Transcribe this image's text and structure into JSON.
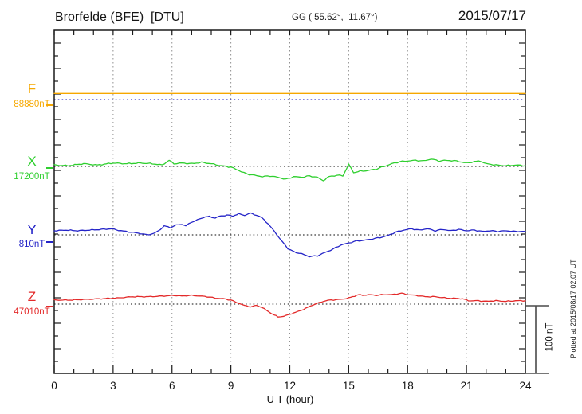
{
  "header": {
    "station": "Brorfelde (BFE)  [DTU]",
    "coords": "GG ( 55.62°,  11.67°)",
    "date": "2015/07/17"
  },
  "axis": {
    "xlabel": "U T (hour)",
    "hour_tick_labels": [
      "0",
      "3",
      "6",
      "9",
      "12",
      "15",
      "18",
      "21",
      "24"
    ],
    "scalebar_label": "100 nT"
  },
  "footer": {
    "plotted_at": "Plotted at 2015/08/17 02:07 UT"
  },
  "colors": {
    "frame": "#1a1a1a",
    "grid": "#8f8f8f",
    "baseline": "#3c3c3c",
    "f_baseline": "#3a3ac8",
    "scalebar": "#4a4a4a",
    "F": "#f6a800",
    "X": "#2fcf2f",
    "Y": "#2424c8",
    "Z": "#e32a2a"
  },
  "chart_data": {
    "type": "line",
    "title": "Brorfelde (BFE)  [DTU] magnetogram",
    "xlabel": "U T (hour)",
    "x_range": [
      0,
      24
    ],
    "x_tick_hours": [
      0,
      3,
      6,
      9,
      12,
      15,
      18,
      21,
      24
    ],
    "grid_hours": [
      3,
      6,
      9,
      12,
      15,
      18,
      21
    ],
    "scale_bar_nT": 100,
    "grid": "dotted",
    "legend_position": "left",
    "series": [
      {
        "id": "F",
        "label": "F",
        "baseline_label": "88880nT",
        "baseline_nT": 88880,
        "color_key": "F",
        "points": [
          [
            0,
            9
          ],
          [
            24,
            9
          ]
        ]
      },
      {
        "id": "X",
        "label": "X",
        "baseline_label": "17200nT",
        "baseline_nT": 17200,
        "color_key": "X",
        "points": [
          [
            0,
            2
          ],
          [
            0.7,
            1
          ],
          [
            1.5,
            4
          ],
          [
            2.2,
            2
          ],
          [
            3,
            5
          ],
          [
            3.7,
            4
          ],
          [
            4.4,
            5
          ],
          [
            5,
            4
          ],
          [
            5.5,
            2
          ],
          [
            5.85,
            9
          ],
          [
            6.1,
            4
          ],
          [
            6.5,
            5
          ],
          [
            7,
            4
          ],
          [
            7.5,
            6
          ],
          [
            8,
            4
          ],
          [
            8.5,
            1
          ],
          [
            9,
            -1
          ],
          [
            9.4,
            -6
          ],
          [
            9.8,
            -11
          ],
          [
            10.2,
            -13
          ],
          [
            10.6,
            -15
          ],
          [
            11,
            -14
          ],
          [
            11.4,
            -16
          ],
          [
            11.8,
            -19
          ],
          [
            12.2,
            -15
          ],
          [
            12.6,
            -16
          ],
          [
            13,
            -14
          ],
          [
            13.4,
            -16
          ],
          [
            13.7,
            -21
          ],
          [
            14,
            -15
          ],
          [
            14.4,
            -13
          ],
          [
            14.7,
            -14
          ],
          [
            15,
            3
          ],
          [
            15.25,
            -9
          ],
          [
            15.6,
            -7
          ],
          [
            16,
            -6
          ],
          [
            16.4,
            -4
          ],
          [
            16.8,
            0
          ],
          [
            17.2,
            4
          ],
          [
            17.6,
            7
          ],
          [
            18,
            8
          ],
          [
            18.4,
            9
          ],
          [
            18.8,
            8
          ],
          [
            19.2,
            11
          ],
          [
            19.6,
            8
          ],
          [
            20,
            9
          ],
          [
            20.5,
            8
          ],
          [
            21,
            5
          ],
          [
            21.4,
            7
          ],
          [
            21.7,
            8
          ],
          [
            22,
            4
          ],
          [
            22.5,
            2
          ],
          [
            23,
            1
          ],
          [
            23.5,
            2
          ],
          [
            24,
            1
          ]
        ]
      },
      {
        "id": "Y",
        "label": "Y",
        "baseline_label": "810nT",
        "baseline_nT": 810,
        "color_key": "Y",
        "points": [
          [
            0,
            6
          ],
          [
            0.6,
            7
          ],
          [
            1.2,
            6
          ],
          [
            1.8,
            7
          ],
          [
            2.4,
            8
          ],
          [
            2.9,
            9
          ],
          [
            3.4,
            6
          ],
          [
            3.9,
            4
          ],
          [
            4.4,
            2
          ],
          [
            4.7,
            0
          ],
          [
            5.1,
            2
          ],
          [
            5.4,
            8
          ],
          [
            5.6,
            13
          ],
          [
            5.9,
            11
          ],
          [
            6.2,
            14
          ],
          [
            6.5,
            16
          ],
          [
            6.7,
            13
          ],
          [
            7,
            19
          ],
          [
            7.3,
            22
          ],
          [
            7.6,
            26
          ],
          [
            7.9,
            27
          ],
          [
            8.2,
            25
          ],
          [
            8.5,
            28
          ],
          [
            8.8,
            29
          ],
          [
            9.1,
            28
          ],
          [
            9.4,
            31
          ],
          [
            9.7,
            29
          ],
          [
            10,
            32
          ],
          [
            10.3,
            29
          ],
          [
            10.6,
            25
          ],
          [
            10.9,
            16
          ],
          [
            11.2,
            6
          ],
          [
            11.5,
            -6
          ],
          [
            11.9,
            -20
          ],
          [
            12.2,
            -25
          ],
          [
            12.6,
            -28
          ],
          [
            13,
            -32
          ],
          [
            13.4,
            -31
          ],
          [
            13.8,
            -26
          ],
          [
            14.2,
            -21
          ],
          [
            14.6,
            -15
          ],
          [
            15,
            -12
          ],
          [
            15.4,
            -9
          ],
          [
            15.8,
            -8
          ],
          [
            16.2,
            -6
          ],
          [
            16.6,
            -4
          ],
          [
            17,
            -1
          ],
          [
            17.4,
            4
          ],
          [
            17.8,
            7
          ],
          [
            18.2,
            9
          ],
          [
            18.6,
            7
          ],
          [
            19,
            9
          ],
          [
            19.4,
            6
          ],
          [
            19.8,
            8
          ],
          [
            20.2,
            6
          ],
          [
            20.6,
            8
          ],
          [
            21,
            6
          ],
          [
            21.4,
            7
          ],
          [
            21.8,
            5
          ],
          [
            22.2,
            6
          ],
          [
            22.6,
            5
          ],
          [
            23,
            6
          ],
          [
            23.4,
            5
          ],
          [
            24,
            5
          ]
        ]
      },
      {
        "id": "Z",
        "label": "Z",
        "baseline_label": "47010nT",
        "baseline_nT": 47010,
        "color_key": "Z",
        "points": [
          [
            0,
            6
          ],
          [
            0.8,
            6
          ],
          [
            1.6,
            7
          ],
          [
            2.4,
            8
          ],
          [
            3.2,
            9
          ],
          [
            4,
            11
          ],
          [
            4.8,
            11
          ],
          [
            5.6,
            12
          ],
          [
            6.1,
            13
          ],
          [
            6.5,
            12
          ],
          [
            7,
            13
          ],
          [
            7.4,
            12
          ],
          [
            7.8,
            11
          ],
          [
            8.2,
            9
          ],
          [
            8.6,
            8
          ],
          [
            9,
            6
          ],
          [
            9.4,
            1
          ],
          [
            9.7,
            -2
          ],
          [
            10,
            -4
          ],
          [
            10.3,
            -2
          ],
          [
            10.6,
            -5
          ],
          [
            10.9,
            -11
          ],
          [
            11.2,
            -16
          ],
          [
            11.4,
            -19
          ],
          [
            11.7,
            -18
          ],
          [
            12,
            -15
          ],
          [
            12.3,
            -12
          ],
          [
            12.6,
            -9
          ],
          [
            12.9,
            -5
          ],
          [
            13.2,
            -1
          ],
          [
            13.5,
            2
          ],
          [
            13.8,
            5
          ],
          [
            14.1,
            6
          ],
          [
            14.6,
            7
          ],
          [
            15,
            9
          ],
          [
            15.3,
            12
          ],
          [
            15.5,
            14
          ],
          [
            15.7,
            13
          ],
          [
            16,
            14
          ],
          [
            16.4,
            13
          ],
          [
            16.8,
            14
          ],
          [
            17.2,
            14
          ],
          [
            17.7,
            16
          ],
          [
            18,
            14
          ],
          [
            18.4,
            13
          ],
          [
            18.9,
            11
          ],
          [
            19.4,
            11
          ],
          [
            20,
            9
          ],
          [
            20.8,
            8
          ],
          [
            21.1,
            5
          ],
          [
            21.6,
            5
          ],
          [
            22,
            4
          ],
          [
            22.5,
            5
          ],
          [
            23,
            4
          ],
          [
            23.5,
            5
          ],
          [
            24,
            5
          ]
        ]
      }
    ]
  }
}
